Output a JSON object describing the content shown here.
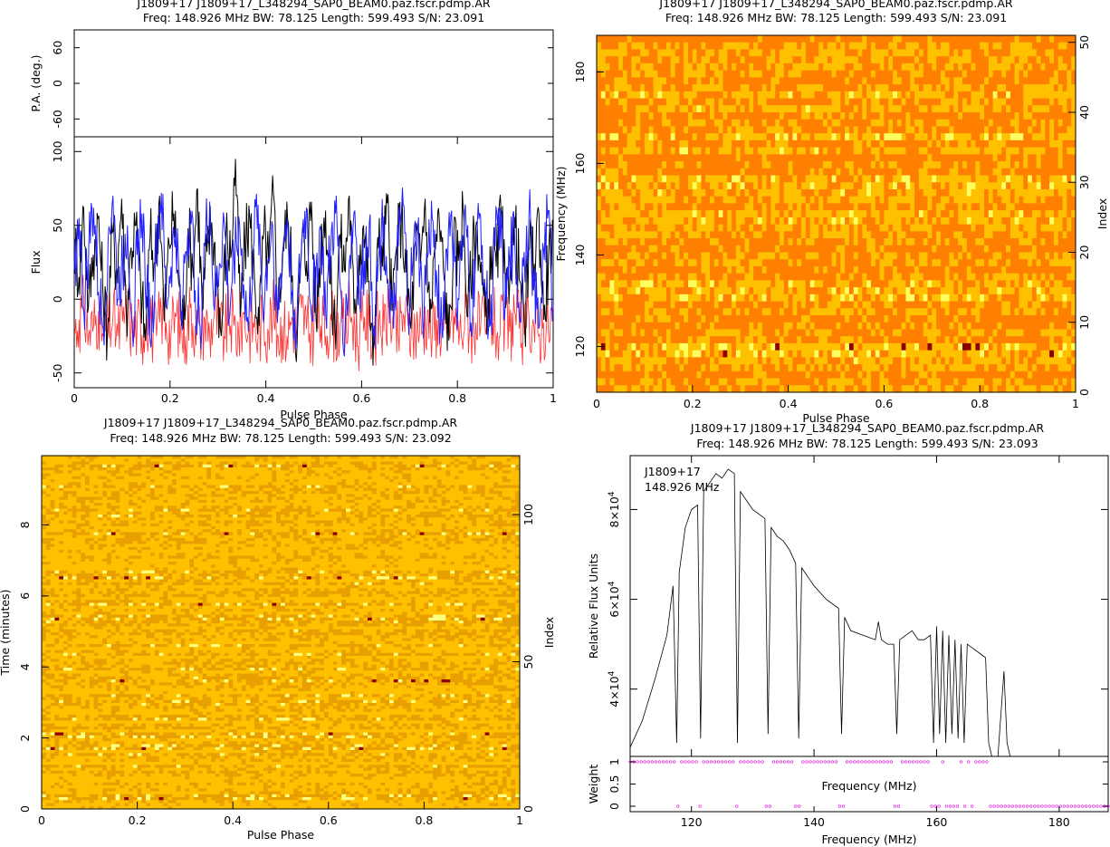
{
  "chart_data": [
    {
      "id": "profile",
      "type": "line",
      "title": "J1809+17 J1809+17_L348294_SAP0_BEAM0.paz.fscr.pdmp.AR",
      "subtitle": "Freq: 148.926 MHz BW: 78.125 Length: 599.493 S/N: 23.091",
      "panels": [
        {
          "ylabel": "P.A. (deg.)",
          "yticks": [
            "-60",
            "0",
            "60"
          ],
          "ylim": [
            -90,
            90
          ]
        },
        {
          "ylabel": "Flux",
          "xlabel": "Pulse Phase",
          "xlim": [
            0,
            1
          ],
          "ylim": [
            -60,
            110
          ],
          "xticks": [
            "0",
            "0.2",
            "0.4",
            "0.6",
            "0.8",
            "1"
          ],
          "yticks": [
            "-50",
            "0",
            "50",
            "100"
          ],
          "series": [
            {
              "color": "#ff3030",
              "values": [
                -22,
                -14,
                -6,
                -24,
                -18,
                -8,
                -25,
                -20,
                -12,
                -25,
                -15,
                -6,
                -22,
                -18,
                -24,
                -10,
                -20,
                -25,
                -8,
                -16,
                -24,
                -12,
                -20,
                -25,
                -6,
                -18,
                -22,
                -14,
                -24,
                -8,
                -20,
                -25,
                -12,
                -18,
                -24,
                -10,
                -22,
                -16,
                -25,
                -14,
                -20,
                -8,
                -24,
                -18,
                -25,
                -12,
                -22,
                -6,
                -20,
                -24,
                -14,
                -18,
                -25,
                -10,
                -22,
                -16,
                -24,
                -8,
                -20,
                -25,
                -12,
                -18,
                -24,
                -14,
                -22,
                -6,
                -20,
                -25,
                -10,
                -18,
                -24,
                -16,
                -22,
                -8,
                -25,
                -14,
                -20,
                -24,
                -12,
                -18,
                -25,
                -6,
                -22,
                -16,
                -20,
                -24,
                -10,
                -18,
                -25,
                -14,
                -22,
                -8,
                -20,
                -24,
                -12,
                -18,
                -25,
                -16,
                -22,
                -6
              ]
            },
            {
              "color": "#000000",
              "values": [
                40,
                15,
                62,
                -5,
                30,
                55,
                8,
                -22,
                45,
                20,
                68,
                -10,
                35,
                50,
                10,
                -28,
                42,
                25,
                70,
                -15,
                38,
                58,
                12,
                -20,
                48,
                22,
                75,
                -8,
                32,
                52,
                18,
                -25,
                44,
                28,
                95,
                -12,
                36,
                56,
                14,
                -18,
                46,
                24,
                72,
                -6,
                34,
                54,
                16,
                -30,
                40,
                26,
                66,
                -14,
                38,
                60,
                10,
                -22,
                44,
                20,
                70,
                -10,
                30,
                50,
                12,
                -45,
                42,
                22,
                65,
                -8,
                36,
                56,
                18,
                -20,
                40,
                24,
                68,
                -16,
                34,
                52,
                14,
                -28,
                38,
                26,
                62,
                -12,
                32,
                50,
                10,
                -24,
                36,
                22,
                60,
                -6,
                30,
                48,
                12,
                -20,
                34,
                24,
                58,
                -14,
                28,
                46
              ]
            },
            {
              "color": "#2020ff",
              "values": [
                20,
                55,
                -10,
                35,
                62,
                5,
                -20,
                40,
                70,
                0,
                25,
                50,
                -15,
                30,
                58,
                8,
                -25,
                38,
                72,
                -5,
                22,
                48,
                -12,
                32,
                60,
                6,
                -18,
                36,
                66,
                -8,
                24,
                52,
                -14,
                28,
                56,
                10,
                -22,
                34,
                64,
                -6,
                26,
                50,
                -16,
                30,
                54,
                4,
                -20,
                38,
                62,
                -10,
                22,
                46,
                -12,
                34,
                58,
                8,
                -24,
                30,
                60,
                -4,
                26,
                52,
                -18,
                32,
                56,
                6,
                -20,
                36,
                64,
                -8,
                24,
                48,
                -14,
                28,
                54,
                10,
                -22,
                34,
                60,
                -6,
                28,
                50,
                -16,
                30,
                56,
                4,
                -18,
                36,
                62,
                -10,
                24,
                46,
                -12,
                32,
                58,
                8,
                -20,
                34,
                60,
                -4
              ]
            }
          ]
        }
      ]
    },
    {
      "id": "freq_phase",
      "type": "heatmap",
      "title": "J1809+17 J1809+17_L348294_SAP0_BEAM0.paz.fscr.pdmp.AR",
      "subtitle": "Freq: 148.926 MHz BW: 78.125 Length: 599.493 S/N: 23.091",
      "xlabel": "Pulse Phase",
      "ylabel": "Frequency (MHz)",
      "ylabel_right": "Index",
      "xlim": [
        0,
        1
      ],
      "ylim": [
        110,
        188
      ],
      "ylim_right": [
        0,
        51
      ],
      "xticks": [
        "0",
        "0.2",
        "0.4",
        "0.6",
        "0.8",
        "1"
      ],
      "yticks": [
        "120",
        "140",
        "160",
        "180"
      ],
      "yticks_right": [
        "0",
        "10",
        "20",
        "30",
        "40",
        "50"
      ],
      "colormap": [
        "#ff8000",
        "#ffc000",
        "#ffff60",
        "#8b0000"
      ]
    },
    {
      "id": "time_phase",
      "type": "heatmap",
      "title": "J1809+17 J1809+17_L348294_SAP0_BEAM0.paz.fscr.pdmp.AR",
      "subtitle": "Freq: 148.926 MHz BW: 78.125 Length: 599.493 S/N: 23.092",
      "xlabel": "Pulse Phase",
      "ylabel": "Time (minutes)",
      "ylabel_right": "Index",
      "xlim": [
        0,
        1
      ],
      "ylim": [
        0,
        9.95
      ],
      "ylim_right": [
        0,
        120
      ],
      "xticks": [
        "0",
        "0.2",
        "0.4",
        "0.6",
        "0.8",
        "1"
      ],
      "yticks": [
        "0",
        "2",
        "4",
        "6",
        "8"
      ],
      "yticks_right": [
        "0",
        "50",
        "100"
      ],
      "colormap": [
        "#ffc000",
        "#e8a000",
        "#ffff80",
        "#8b0000"
      ]
    },
    {
      "id": "bandpass",
      "type": "line",
      "title": "J1809+17 J1809+17_L348294_SAP0_BEAM0.paz.fscr.pdmp.AR",
      "subtitle": "Freq: 148.926 MHz BW: 78.125 Length: 599.493 S/N: 23.093",
      "annotation": [
        "J1809+17",
        "148.926 MHz"
      ],
      "xlabel": "Frequency (MHz)",
      "ylabel": "Relative Flux Units",
      "xlim": [
        110,
        188
      ],
      "ylim": [
        25000,
        92000
      ],
      "xticks": [
        "120",
        "140",
        "160",
        "180"
      ],
      "yticks": [
        {
          "value": 40000,
          "base": "4×10",
          "exp": "4"
        },
        {
          "value": 60000,
          "base": "6×10",
          "exp": "4"
        },
        {
          "value": 80000,
          "base": "8×10",
          "exp": "4"
        }
      ],
      "x": [
        110,
        112,
        114,
        116,
        117,
        117.6,
        118,
        119,
        120,
        121,
        121.5,
        122,
        123,
        124,
        125,
        126,
        127,
        127.5,
        128,
        129,
        130,
        131,
        132,
        132.5,
        133,
        134,
        135,
        136,
        137,
        137.5,
        138,
        139,
        140,
        142,
        144,
        144.5,
        145,
        146,
        148,
        150,
        150.5,
        151,
        152,
        153,
        153.5,
        154,
        155,
        156,
        157,
        158,
        159,
        159.5,
        160,
        160.5,
        161,
        161.5,
        162,
        162.5,
        163,
        163.5,
        164,
        164.5,
        165,
        166,
        167,
        168,
        168.5,
        169,
        170,
        171,
        171.5,
        172
      ],
      "values": [
        27000,
        33000,
        42000,
        52000,
        63000,
        28000,
        66000,
        76000,
        80000,
        81000,
        29000,
        84000,
        86000,
        88000,
        87000,
        89000,
        88000,
        28000,
        84000,
        82000,
        80000,
        79000,
        78000,
        30000,
        76000,
        74000,
        73000,
        71000,
        68000,
        29000,
        67000,
        65000,
        63000,
        60000,
        58000,
        30000,
        56000,
        53000,
        52000,
        51000,
        55000,
        51000,
        50000,
        50000,
        30000,
        51000,
        52000,
        53000,
        51000,
        51000,
        52000,
        28000,
        54000,
        30000,
        53000,
        28000,
        52000,
        30000,
        51000,
        29000,
        50000,
        28000,
        50000,
        49000,
        48000,
        47000,
        28000,
        0,
        0,
        44000,
        28000,
        0
      ],
      "weight_panel": {
        "ylabel": "Weight",
        "xlabel": "Frequency (MHz)",
        "ylim": [
          0,
          1
        ],
        "yticks": [
          "0",
          "0.5",
          "1"
        ],
        "marker_color": "#e020e0",
        "zero_weight_freqs": [
          117.6,
          121.5,
          127.2,
          127.6,
          132.5,
          137.2,
          137.6,
          144.5,
          153.5,
          159.5,
          160.5,
          161.5,
          162.5,
          163.5,
          164.5,
          166,
          169,
          170,
          172,
          174,
          176,
          178,
          180,
          182,
          184,
          186,
          188
        ]
      }
    }
  ]
}
